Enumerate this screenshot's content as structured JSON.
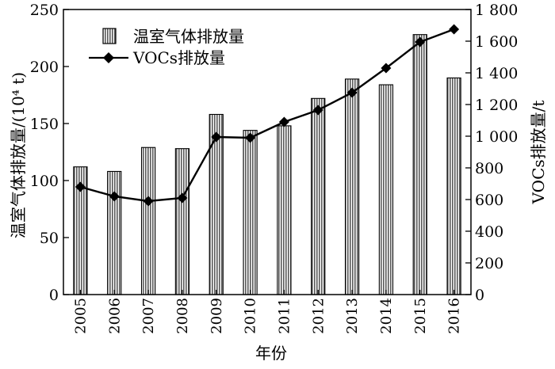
{
  "chart_data": {
    "type": "bar+line",
    "title": "",
    "xlabel": "年份",
    "ylabel_left": "温室气体排放量/(10⁴ t)",
    "ylabel_right": "VOCs排放量/t",
    "categories": [
      "2005",
      "2006",
      "2007",
      "2008",
      "2009",
      "2010",
      "2011",
      "2012",
      "2013",
      "2014",
      "2015",
      "2016"
    ],
    "ylim_left": [
      0,
      250
    ],
    "ylim_right": [
      0,
      1800
    ],
    "yticks_left": [
      "0",
      "50",
      "100",
      "150",
      "200",
      "250"
    ],
    "yticks_right": [
      "0",
      "200",
      "400",
      "600",
      "800",
      "1 000",
      "1 200",
      "1 400",
      "1 600",
      "1 800"
    ],
    "grid": false,
    "legend_position": "top-left",
    "series": [
      {
        "name": "温室气体排放量",
        "kind": "bar",
        "axis": "left",
        "pattern": "vertical-hatch",
        "values": [
          112,
          108,
          129,
          128,
          158,
          144,
          148,
          172,
          189,
          184,
          228,
          190
        ]
      },
      {
        "name": "VOCs排放量",
        "kind": "line",
        "axis": "right",
        "marker": "diamond",
        "values": [
          680,
          620,
          590,
          610,
          995,
          990,
          1090,
          1165,
          1275,
          1430,
          1595,
          1675
        ]
      }
    ],
    "colors": {
      "bar_fill": "#7a7a7a",
      "bar_stroke": "#000000",
      "line": "#000000"
    }
  }
}
